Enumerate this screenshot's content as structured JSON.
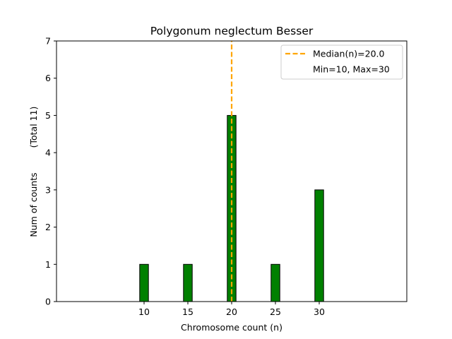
{
  "chart_data": {
    "type": "bar",
    "title": "Polygonum neglectum Besser",
    "xlabel": "Chromosome count (n)",
    "ylabel": "Num of counts",
    "ylabel_secondary": "(Total 11)",
    "x": [
      10,
      15,
      20,
      25,
      30
    ],
    "values": [
      1,
      1,
      5,
      1,
      3
    ],
    "bar_width": 1,
    "bar_color": "#008000",
    "bar_edge_color": "#000000",
    "xlim": [
      0,
      40
    ],
    "ylim": [
      0,
      7
    ],
    "xticks": [
      10,
      15,
      20,
      25,
      30
    ],
    "yticks": [
      0,
      1,
      2,
      3,
      4,
      5,
      6,
      7
    ],
    "grid": false,
    "median": {
      "value": 20.0,
      "color": "#FFA500",
      "style": "dashed"
    },
    "legend": {
      "placement": "top-right",
      "entries": [
        "Median(n)=20.0",
        "Min=10, Max=30"
      ]
    },
    "baseline_extent": [
      0,
      33.5
    ]
  }
}
